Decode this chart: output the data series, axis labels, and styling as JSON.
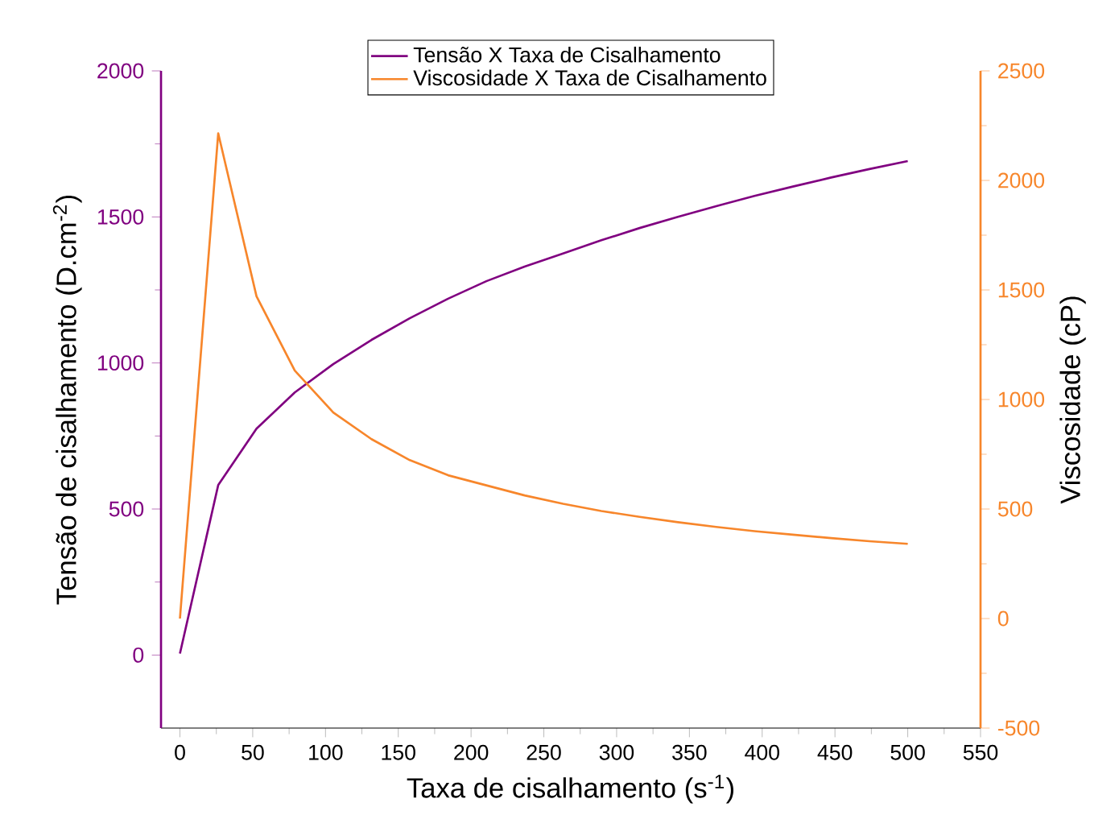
{
  "chart_data": {
    "type": "line",
    "xlabel": "Taxa de cisalhamento (s$^{-1}$)",
    "ylabel": "Tensão de cisalhamento (D.cm$^{-2}$)",
    "y2label": "Viscosidade (cP)",
    "x": [
      0,
      26.3,
      52.6,
      78.9,
      105.3,
      131.6,
      157.9,
      184.2,
      210.5,
      236.8,
      263.2,
      289.5,
      315.8,
      342.1,
      368.4,
      394.7,
      421.1,
      447.4,
      473.7,
      500
    ],
    "series": [
      {
        "name": "Tensão X Taxa de Cisalhamento",
        "color": "#800080",
        "values": [
          5,
          582,
          775,
          899,
          996,
          1079,
          1153,
          1220,
          1280,
          1330,
          1375,
          1420,
          1462,
          1500,
          1537,
          1572,
          1604,
          1635,
          1664,
          1691
        ]
      },
      {
        "name": "Viscosidade X Taxa de Cisalhamento",
        "color": "#f7862b",
        "axis": "y2",
        "values": [
          0,
          2215,
          1471,
          1132,
          941,
          819,
          723,
          654,
          608,
          562,
          524,
          491,
          464,
          440,
          418,
          399,
          383,
          367,
          353,
          341
        ]
      }
    ],
    "xlim": [
      -13,
      550
    ],
    "xticks": [
      0,
      50,
      100,
      150,
      200,
      250,
      300,
      350,
      400,
      450,
      500,
      550
    ],
    "ylim": [
      -250,
      2000
    ],
    "yticks": [
      0,
      500,
      1000,
      1500,
      2000
    ],
    "y2lim": [
      -500,
      2500
    ],
    "y2ticks": [
      -500,
      0,
      500,
      1000,
      1500,
      2000,
      2500
    ],
    "legend": "top",
    "grid": false,
    "marker": "none",
    "line_style": "solid"
  }
}
